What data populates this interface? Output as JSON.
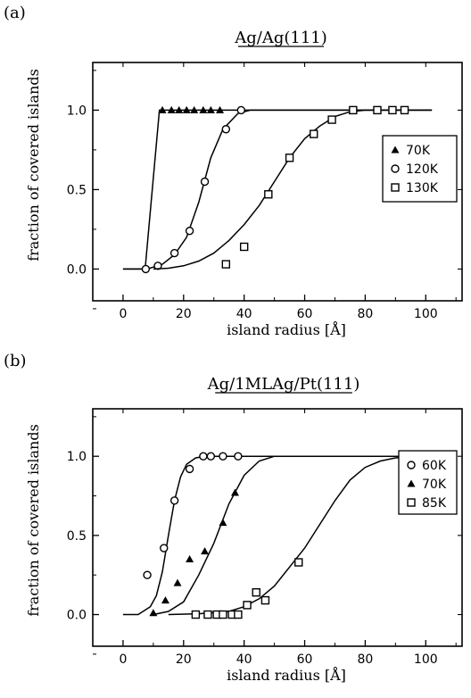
{
  "chart_data": [
    {
      "type": "scatter",
      "panel_label": "(a)",
      "title": "Ag/Ag(111)",
      "xlabel": "island radius [Å]",
      "ylabel": "fraction of covered islands",
      "xlim": [
        -10,
        112
      ],
      "ylim": [
        -0.2,
        1.3
      ],
      "xticks": [
        "0",
        "20",
        "40",
        "60",
        "80",
        "100"
      ],
      "yticks": [
        "0.0",
        "0.5",
        "1.0"
      ],
      "legend_position": "right",
      "series": [
        {
          "name": "70K",
          "marker": "triangle",
          "points": [
            [
              13,
              1.0
            ],
            [
              16,
              1.0
            ],
            [
              18.5,
              1.0
            ],
            [
              21,
              1.0
            ],
            [
              23.5,
              1.0
            ],
            [
              26.5,
              1.0
            ],
            [
              29,
              1.0
            ],
            [
              32,
              1.0
            ]
          ],
          "fit": [
            [
              0,
              0.0
            ],
            [
              7.3,
              0.0
            ],
            [
              12,
              1.0
            ],
            [
              102,
              1.0
            ]
          ]
        },
        {
          "name": "120K",
          "marker": "circle",
          "points": [
            [
              7.5,
              0.0
            ],
            [
              11.5,
              0.02
            ],
            [
              17,
              0.1
            ],
            [
              22,
              0.24
            ],
            [
              27,
              0.55
            ],
            [
              34,
              0.88
            ],
            [
              39,
              1.0
            ]
          ],
          "fit": [
            [
              0,
              0.0
            ],
            [
              8,
              0.0
            ],
            [
              13,
              0.03
            ],
            [
              17,
              0.09
            ],
            [
              21,
              0.2
            ],
            [
              25,
              0.42
            ],
            [
              29,
              0.7
            ],
            [
              33,
              0.88
            ],
            [
              38,
              0.98
            ],
            [
              42,
              1.0
            ],
            [
              102,
              1.0
            ]
          ]
        },
        {
          "name": "130K",
          "marker": "square",
          "points": [
            [
              34,
              0.03
            ],
            [
              40,
              0.14
            ],
            [
              48,
              0.47
            ],
            [
              55,
              0.7
            ],
            [
              63,
              0.85
            ],
            [
              69,
              0.94
            ],
            [
              76,
              1.0
            ],
            [
              84,
              1.0
            ],
            [
              89,
              1.0
            ],
            [
              93,
              1.0
            ]
          ],
          "fit": [
            [
              10,
              0.0
            ],
            [
              15,
              0.005
            ],
            [
              20,
              0.02
            ],
            [
              25,
              0.05
            ],
            [
              30,
              0.1
            ],
            [
              35,
              0.18
            ],
            [
              40,
              0.28
            ],
            [
              45,
              0.4
            ],
            [
              50,
              0.55
            ],
            [
              55,
              0.7
            ],
            [
              60,
              0.82
            ],
            [
              65,
              0.9
            ],
            [
              70,
              0.96
            ],
            [
              75,
              0.99
            ],
            [
              80,
              1.0
            ],
            [
              102,
              1.0
            ]
          ]
        }
      ]
    },
    {
      "type": "scatter",
      "panel_label": "(b)",
      "title": "Ag/1MLAg/Pt(111)",
      "xlabel": "island radius [Å]",
      "ylabel": "fraction of covered islands",
      "xlim": [
        -10,
        112
      ],
      "ylim": [
        -0.2,
        1.3
      ],
      "xticks": [
        "0",
        "20",
        "40",
        "60",
        "80",
        "100"
      ],
      "yticks": [
        "0.0",
        "0.5",
        "1.0"
      ],
      "legend_position": "right",
      "series": [
        {
          "name": "60K",
          "marker": "circle",
          "points": [
            [
              8,
              0.25
            ],
            [
              13.5,
              0.42
            ],
            [
              17,
              0.72
            ],
            [
              22,
              0.92
            ],
            [
              26.5,
              1.0
            ],
            [
              29,
              1.0
            ],
            [
              33,
              1.0
            ],
            [
              38,
              1.0
            ]
          ],
          "fit": [
            [
              0,
              0.0
            ],
            [
              5,
              0.0
            ],
            [
              9,
              0.05
            ],
            [
              11,
              0.12
            ],
            [
              13,
              0.27
            ],
            [
              15,
              0.5
            ],
            [
              17,
              0.72
            ],
            [
              19,
              0.87
            ],
            [
              21,
              0.95
            ],
            [
              24,
              0.99
            ],
            [
              27,
              1.0
            ],
            [
              102,
              1.0
            ]
          ]
        },
        {
          "name": "70K",
          "marker": "triangle",
          "points": [
            [
              10,
              0.01
            ],
            [
              14,
              0.09
            ],
            [
              18,
              0.2
            ],
            [
              22,
              0.35
            ],
            [
              27,
              0.4
            ],
            [
              33,
              0.58
            ],
            [
              37,
              0.77
            ]
          ],
          "fit": [
            [
              10,
              0.0
            ],
            [
              15,
              0.02
            ],
            [
              20,
              0.08
            ],
            [
              25,
              0.25
            ],
            [
              30,
              0.45
            ],
            [
              35,
              0.7
            ],
            [
              40,
              0.88
            ],
            [
              45,
              0.97
            ],
            [
              50,
              1.0
            ],
            [
              102,
              1.0
            ]
          ]
        },
        {
          "name": "85K",
          "marker": "square",
          "points": [
            [
              24,
              0.0
            ],
            [
              28,
              0.0
            ],
            [
              31,
              0.0
            ],
            [
              33,
              0.0
            ],
            [
              36,
              0.0
            ],
            [
              38,
              0.0
            ],
            [
              41,
              0.06
            ],
            [
              44,
              0.14
            ],
            [
              47,
              0.09
            ],
            [
              58,
              0.33
            ]
          ],
          "fit": [
            [
              15,
              0.0
            ],
            [
              25,
              0.005
            ],
            [
              35,
              0.02
            ],
            [
              40,
              0.05
            ],
            [
              45,
              0.1
            ],
            [
              50,
              0.18
            ],
            [
              55,
              0.3
            ],
            [
              60,
              0.42
            ],
            [
              65,
              0.57
            ],
            [
              70,
              0.72
            ],
            [
              75,
              0.85
            ],
            [
              80,
              0.93
            ],
            [
              85,
              0.97
            ],
            [
              90,
              0.99
            ],
            [
              100,
              1.0
            ],
            [
              102,
              1.0
            ]
          ]
        }
      ]
    }
  ]
}
